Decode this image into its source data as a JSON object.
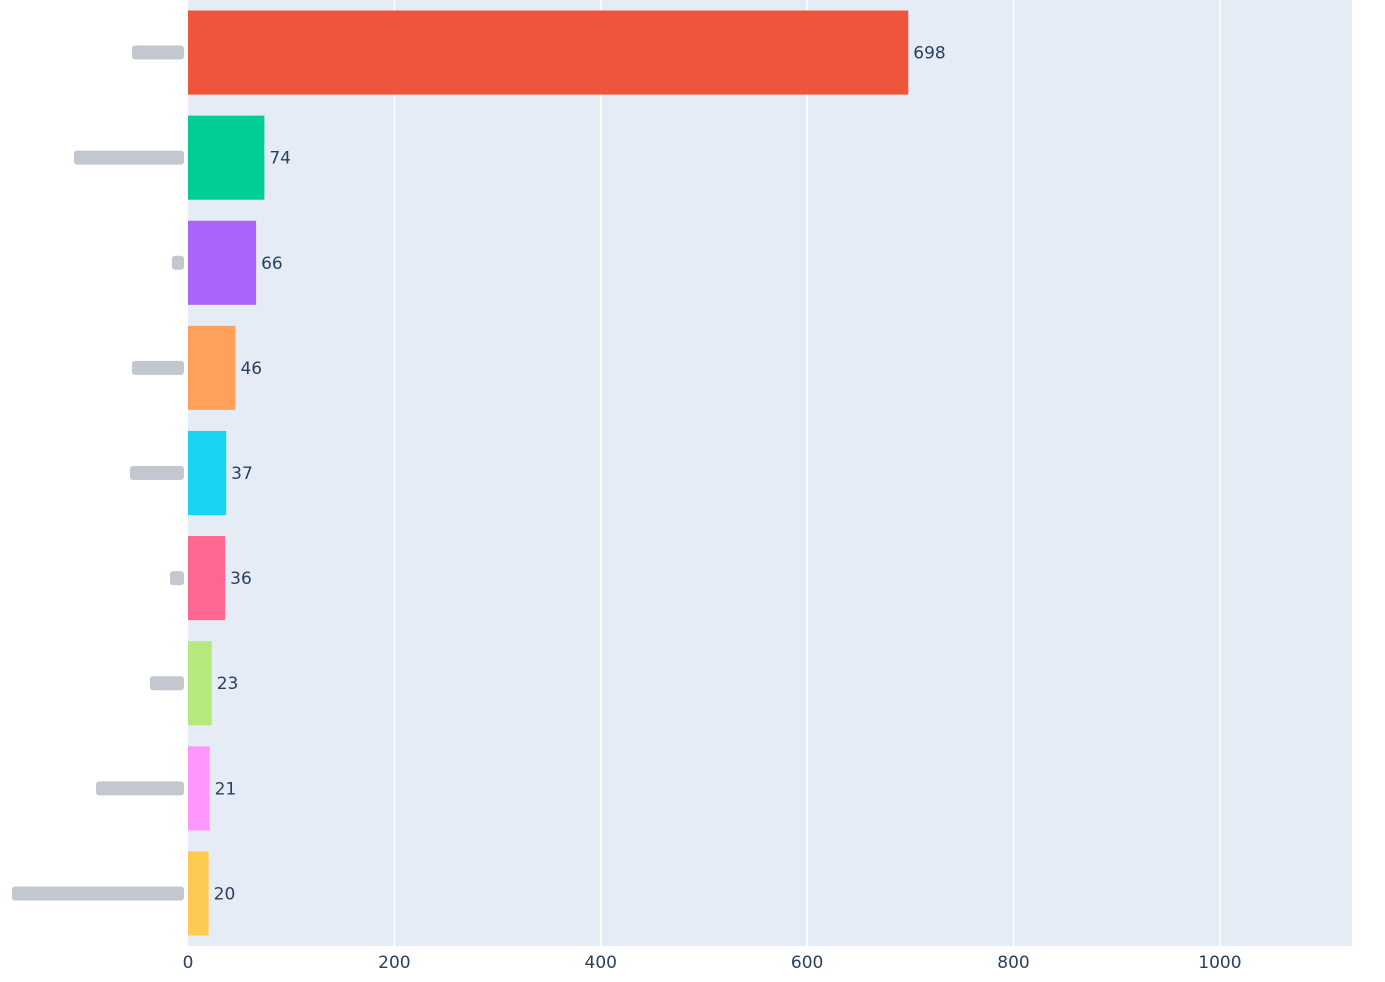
{
  "chart_data": {
    "type": "bar",
    "orientation": "horizontal",
    "categories": [
      "",
      "",
      "",
      "",
      "",
      "",
      "",
      "",
      ""
    ],
    "values": [
      698,
      74,
      66,
      46,
      37,
      36,
      23,
      21,
      20
    ],
    "data_labels": [
      "698",
      "74",
      "66",
      "46",
      "37",
      "36",
      "23",
      "21",
      "20"
    ],
    "colors": [
      "#EF553B",
      "#00CC96",
      "#AB63FA",
      "#FFA15A",
      "#19D3F3",
      "#FF6692",
      "#B6E880",
      "#FF97FF",
      "#FECB52"
    ],
    "xlim": [
      0,
      1128
    ],
    "x_ticks": [
      0,
      200,
      400,
      600,
      800,
      1000
    ],
    "x_tick_labels": [
      "0",
      "200",
      "400",
      "600",
      "800",
      "1000"
    ],
    "grid": true,
    "legend": "none",
    "title": "",
    "xlabel": "",
    "ylabel": "",
    "plot_background": "#E5ECF6",
    "grid_color": "#FFFFFF",
    "text_color": "#2a3f5f"
  }
}
